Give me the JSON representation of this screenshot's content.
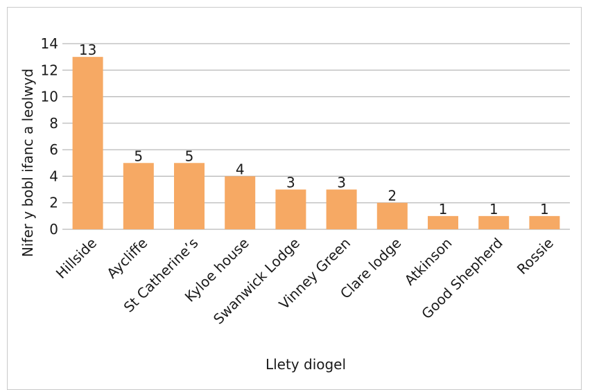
{
  "chart_data": {
    "type": "bar",
    "title": "",
    "xlabel": "Llety diogel",
    "ylabel": "Nifer y bobl ifanc a leolwyd",
    "categories": [
      "Hillside",
      "Aycliffe",
      "St Catherine’s",
      "Kyloe house",
      "Swanwick Lodge",
      "Vinney Green",
      "Clare lodge",
      "Atkinson",
      "Good Shepherd",
      "Rossie"
    ],
    "values": [
      13,
      5,
      5,
      4,
      3,
      3,
      2,
      1,
      1,
      1
    ],
    "ylim": [
      0,
      14
    ],
    "yticks": [
      "0",
      "2",
      "4",
      "6",
      "8",
      "10",
      "12",
      "14"
    ],
    "grid": true,
    "legend": "none",
    "bar_color": "#f6a964",
    "grid_color": "#b8b8b8"
  }
}
